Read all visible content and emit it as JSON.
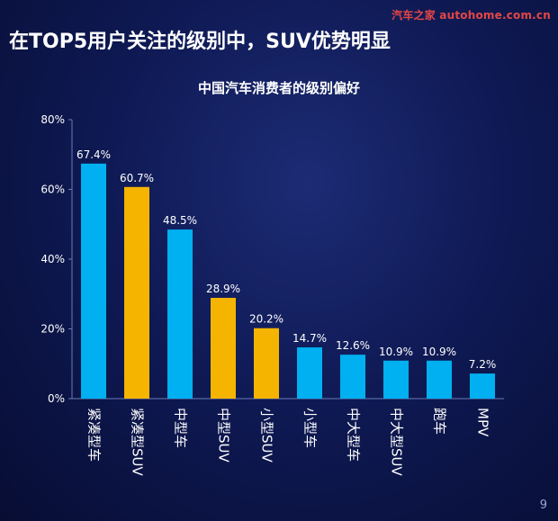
{
  "watermark": "汽车之家 autohome.com.cn",
  "headline": "在TOP5用户关注的级别中，SUV优势明显",
  "page_number": "9",
  "colors": {
    "highlight_bar": "#f5b400",
    "normal_bar": "#00b0f0",
    "axis": "#6a7bb8",
    "background": "#0f1a55"
  },
  "chart_data": {
    "type": "bar",
    "title": "中国汽车消费者的级别偏好",
    "xlabel": "",
    "ylabel": "",
    "categories": [
      "紧凑型车",
      "紧凑型SUV",
      "中型车",
      "中型SUV",
      "小型SUV",
      "小型车",
      "中大型车",
      "中大型SUV",
      "跑车",
      "MPV"
    ],
    "values": [
      67.4,
      60.7,
      48.5,
      28.9,
      20.2,
      14.7,
      12.6,
      10.9,
      10.9,
      7.2
    ],
    "value_labels": [
      "67.4%",
      "60.7%",
      "48.5%",
      "28.9%",
      "20.2%",
      "14.7%",
      "12.6%",
      "10.9%",
      "10.9%",
      "7.2%"
    ],
    "highlighted": [
      false,
      true,
      false,
      true,
      true,
      false,
      false,
      false,
      false,
      false
    ],
    "ylim": [
      0,
      80
    ],
    "yticks": [
      0,
      20,
      40,
      60,
      80
    ],
    "ytick_labels": [
      "0%",
      "20%",
      "40%",
      "60%",
      "80%"
    ],
    "grid": false,
    "legend": "none"
  }
}
